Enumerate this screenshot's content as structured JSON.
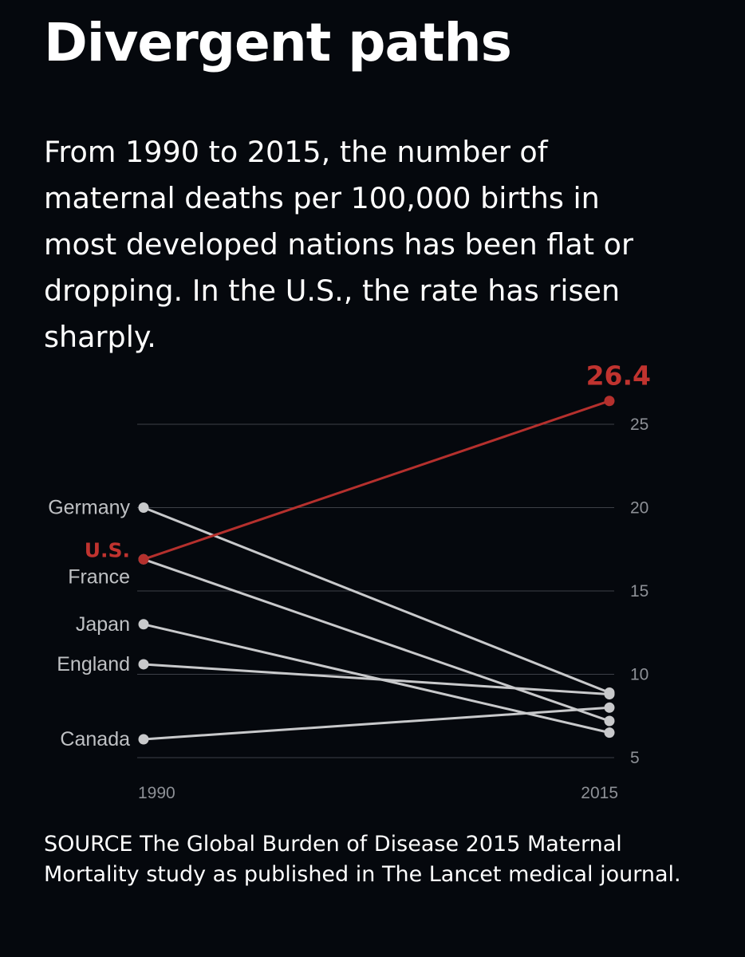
{
  "title": "Divergent paths",
  "subtitle": "From 1990 to 2015, the number of maternal deaths per 100,000 births in most developed nations has been flat or dropping. In the U.S., the rate has risen sharply.",
  "source": "SOURCE The Global Burden of Disease 2015 Maternal Mortality study as published in The Lancet medical journal.",
  "colors": {
    "highlight": "#b5302d",
    "others": "#c8c9cb",
    "grid": "#3d4047",
    "background": "#05080d"
  },
  "chart_data": {
    "type": "line",
    "x": [
      "1990",
      "2015"
    ],
    "ylim": [
      5,
      27
    ],
    "yticks": [
      5,
      10,
      15,
      20,
      25
    ],
    "grid": true,
    "series": [
      {
        "name": "Germany",
        "values": [
          20.0,
          8.9
        ],
        "highlight": false
      },
      {
        "name": "U.S.",
        "values": [
          16.9,
          26.4
        ],
        "highlight": true,
        "end_label": "26.4"
      },
      {
        "name": "France",
        "values": [
          16.9,
          7.2
        ],
        "highlight": false
      },
      {
        "name": "Japan",
        "values": [
          13.0,
          6.5
        ],
        "highlight": false
      },
      {
        "name": "England",
        "values": [
          10.6,
          8.8
        ],
        "highlight": false
      },
      {
        "name": "Canada",
        "values": [
          6.1,
          8.0
        ],
        "highlight": false
      }
    ]
  }
}
